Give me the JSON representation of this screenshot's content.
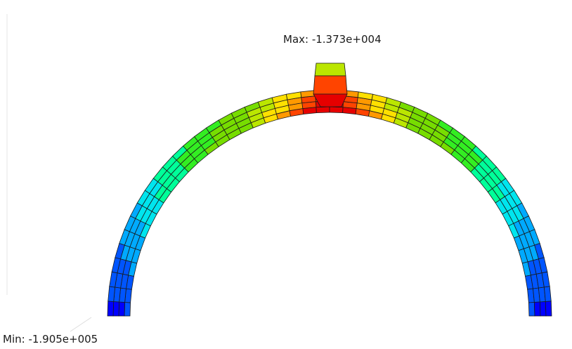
{
  "labels": {
    "max": "Max: -1.373e+004",
    "min": "Min: -1.905e+005"
  },
  "contour": {
    "palette": [
      "#0000ff",
      "#0055ff",
      "#00aaff",
      "#00e5ee",
      "#00ff99",
      "#33ee22",
      "#77dd00",
      "#bbe600",
      "#ffe000",
      "#ff9900",
      "#ff4400",
      "#e60000"
    ]
  }
}
